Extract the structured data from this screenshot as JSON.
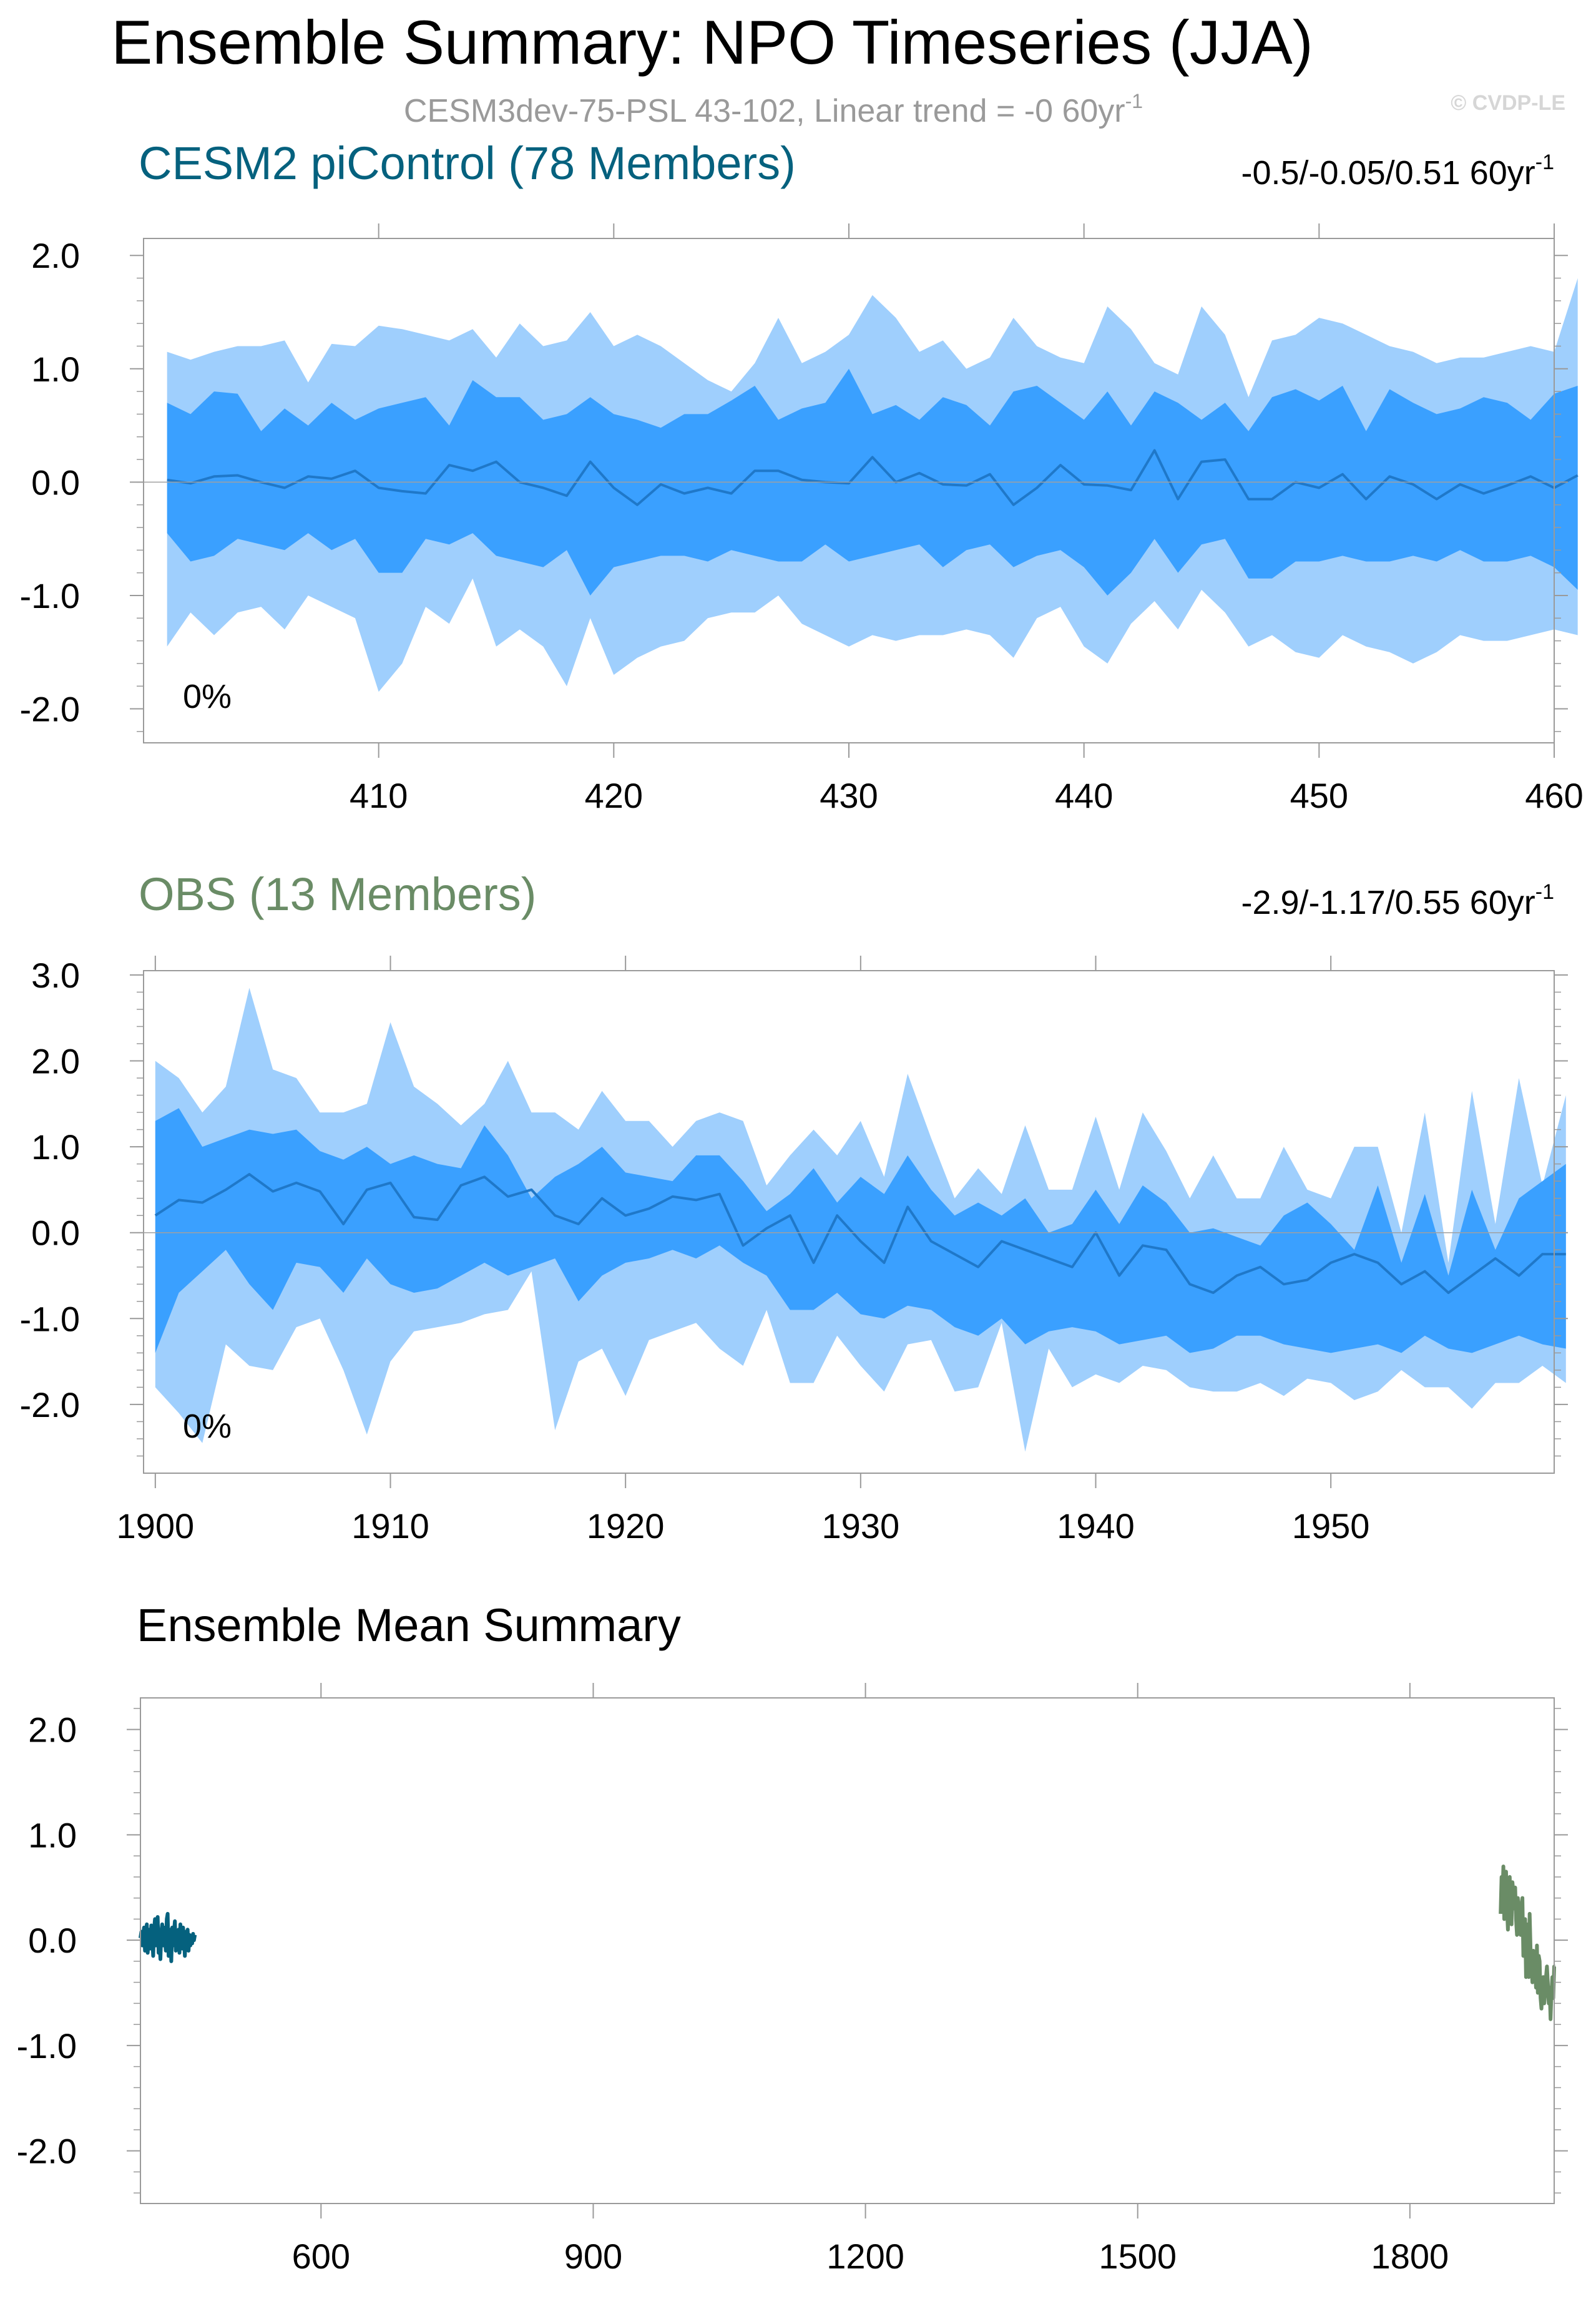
{
  "title": "Ensemble Summary: NPO Timeseries (JJA)",
  "subtitle": {
    "text": "CESM3dev-75-PSL 43-102, Linear trend = -0 60yr",
    "sup": "-1"
  },
  "watermark": "© CVDP-LE",
  "colors": {
    "outer_band": "#9fcffd",
    "inner_band": "#3aa0ff",
    "mean_line": "#1f78c9",
    "cesm_title": "#05617e",
    "obs_title": "#6a8c66",
    "subtitle": "#9a9a9a",
    "axis": "#9a9a9a"
  },
  "panels": [
    {
      "id": "cesm",
      "title": "CESM2 piControl (78 Members)",
      "stats": {
        "text": "-0.5/-0.05/0.51 60yr",
        "sup": "-1"
      },
      "percent_label": "0%",
      "y_tick_labels": [
        "2.0",
        "1.0",
        "0.0",
        "-1.0",
        "-2.0"
      ],
      "x_tick_labels": [
        "410",
        "420",
        "430",
        "440",
        "450",
        "460"
      ]
    },
    {
      "id": "obs",
      "title": "OBS (13 Members)",
      "stats": {
        "text": "-2.9/-1.17/0.55 60yr",
        "sup": "-1"
      },
      "percent_label": "0%",
      "y_tick_labels": [
        "3.0",
        "2.0",
        "1.0",
        "0.0",
        "-1.0",
        "-2.0"
      ],
      "x_tick_labels": [
        "1900",
        "1910",
        "1920",
        "1930",
        "1940",
        "1950"
      ]
    },
    {
      "id": "summary",
      "title": "Ensemble Mean Summary",
      "y_tick_labels": [
        "2.0",
        "1.0",
        "0.0",
        "-1.0",
        "-2.0"
      ],
      "x_tick_labels": [
        "600",
        "900",
        "1200",
        "1500",
        "1800"
      ]
    }
  ],
  "chart_data": [
    {
      "type": "area",
      "title": "CESM2 piControl (78 Members)",
      "x_start": 401,
      "xlim": [
        400,
        460
      ],
      "ylim": [
        -2.3,
        2.15
      ],
      "x_ticks": [
        410,
        420,
        430,
        440,
        450,
        460
      ],
      "y_ticks": [
        2.0,
        1.0,
        0.0,
        -1.0,
        -2.0
      ],
      "mean": [
        0.02,
        -0.01,
        0.05,
        0.06,
        0.0,
        -0.05,
        0.05,
        0.03,
        0.1,
        -0.05,
        -0.08,
        -0.1,
        0.15,
        0.1,
        0.18,
        0.0,
        -0.05,
        -0.12,
        0.18,
        -0.05,
        -0.2,
        -0.02,
        -0.1,
        -0.05,
        -0.1,
        0.1,
        0.1,
        0.02,
        0.0,
        -0.01,
        0.22,
        0.0,
        0.08,
        -0.02,
        -0.03,
        0.07,
        -0.2,
        -0.05,
        0.15,
        -0.02,
        -0.03,
        -0.07,
        0.28,
        -0.15,
        0.18,
        0.2,
        -0.15,
        -0.15,
        0.0,
        -0.05,
        0.07,
        -0.15,
        0.05,
        -0.02,
        -0.15,
        -0.02,
        -0.1,
        -0.03,
        0.05,
        -0.05,
        0.06
      ],
      "upper_outer": [
        1.15,
        1.08,
        1.15,
        1.2,
        1.2,
        1.25,
        0.88,
        1.22,
        1.2,
        1.38,
        1.35,
        1.3,
        1.25,
        1.35,
        1.1,
        1.4,
        1.2,
        1.25,
        1.5,
        1.2,
        1.3,
        1.2,
        1.05,
        0.9,
        0.8,
        1.05,
        1.45,
        1.05,
        1.15,
        1.3,
        1.65,
        1.45,
        1.15,
        1.25,
        1.0,
        1.1,
        1.45,
        1.2,
        1.1,
        1.05,
        1.55,
        1.35,
        1.05,
        0.95,
        1.55,
        1.3,
        0.75,
        1.25,
        1.3,
        1.45,
        1.4,
        1.3,
        1.2,
        1.15,
        1.05,
        1.1,
        1.1,
        1.15,
        1.2,
        1.15,
        1.8
      ],
      "upper_inner": [
        0.7,
        0.6,
        0.8,
        0.78,
        0.45,
        0.65,
        0.5,
        0.7,
        0.55,
        0.65,
        0.7,
        0.75,
        0.5,
        0.9,
        0.75,
        0.75,
        0.55,
        0.6,
        0.75,
        0.6,
        0.55,
        0.48,
        0.6,
        0.6,
        0.72,
        0.85,
        0.55,
        0.65,
        0.7,
        1.0,
        0.6,
        0.68,
        0.55,
        0.75,
        0.68,
        0.5,
        0.8,
        0.85,
        0.7,
        0.55,
        0.8,
        0.5,
        0.8,
        0.7,
        0.55,
        0.7,
        0.45,
        0.75,
        0.82,
        0.72,
        0.85,
        0.45,
        0.82,
        0.7,
        0.6,
        0.65,
        0.75,
        0.7,
        0.55,
        0.78,
        0.85
      ],
      "lower_inner": [
        -0.45,
        -0.7,
        -0.65,
        -0.5,
        -0.55,
        -0.6,
        -0.45,
        -0.6,
        -0.5,
        -0.8,
        -0.8,
        -0.5,
        -0.55,
        -0.45,
        -0.65,
        -0.7,
        -0.75,
        -0.6,
        -1.0,
        -0.75,
        -0.7,
        -0.65,
        -0.65,
        -0.7,
        -0.6,
        -0.65,
        -0.7,
        -0.7,
        -0.55,
        -0.7,
        -0.65,
        -0.6,
        -0.55,
        -0.75,
        -0.6,
        -0.55,
        -0.75,
        -0.65,
        -0.6,
        -0.75,
        -1.0,
        -0.8,
        -0.5,
        -0.8,
        -0.55,
        -0.5,
        -0.85,
        -0.85,
        -0.7,
        -0.7,
        -0.65,
        -0.7,
        -0.7,
        -0.65,
        -0.7,
        -0.6,
        -0.7,
        -0.7,
        -0.65,
        -0.75,
        -0.95
      ],
      "lower_outer": [
        -1.45,
        -1.15,
        -1.35,
        -1.15,
        -1.1,
        -1.3,
        -1.0,
        -1.1,
        -1.2,
        -1.85,
        -1.6,
        -1.1,
        -1.25,
        -0.85,
        -1.45,
        -1.3,
        -1.45,
        -1.8,
        -1.2,
        -1.7,
        -1.55,
        -1.45,
        -1.4,
        -1.2,
        -1.15,
        -1.15,
        -1.0,
        -1.25,
        -1.35,
        -1.45,
        -1.35,
        -1.4,
        -1.35,
        -1.35,
        -1.3,
        -1.35,
        -1.55,
        -1.2,
        -1.1,
        -1.45,
        -1.6,
        -1.25,
        -1.05,
        -1.3,
        -0.95,
        -1.15,
        -1.45,
        -1.35,
        -1.5,
        -1.55,
        -1.35,
        -1.45,
        -1.5,
        -1.6,
        -1.5,
        -1.35,
        -1.4,
        -1.4,
        -1.35,
        -1.3,
        -1.35
      ]
    },
    {
      "type": "area",
      "title": "OBS (13 Members)",
      "x_start": 1900,
      "xlim": [
        1899.5,
        1959.5
      ],
      "ylim": [
        -2.8,
        3.05
      ],
      "x_ticks": [
        1900,
        1910,
        1920,
        1930,
        1940,
        1950
      ],
      "y_ticks": [
        3.0,
        2.0,
        1.0,
        0.0,
        -1.0,
        -2.0
      ],
      "mean": [
        0.2,
        0.38,
        0.35,
        0.5,
        0.68,
        0.48,
        0.58,
        0.48,
        0.1,
        0.5,
        0.58,
        0.18,
        0.15,
        0.55,
        0.65,
        0.42,
        0.5,
        0.2,
        0.1,
        0.4,
        0.2,
        0.28,
        0.42,
        0.38,
        0.45,
        -0.15,
        0.05,
        0.2,
        -0.35,
        0.2,
        -0.1,
        -0.35,
        0.3,
        -0.1,
        -0.25,
        -0.4,
        -0.1,
        -0.2,
        -0.3,
        -0.4,
        0.0,
        -0.5,
        -0.15,
        -0.2,
        -0.6,
        -0.7,
        -0.5,
        -0.4,
        -0.6,
        -0.55,
        -0.35,
        -0.25,
        -0.35,
        -0.6,
        -0.45,
        -0.7,
        -0.5,
        -0.3,
        -0.5,
        -0.25,
        -0.25
      ],
      "upper_outer": [
        2.0,
        1.8,
        1.4,
        1.7,
        2.85,
        1.9,
        1.8,
        1.4,
        1.4,
        1.5,
        2.45,
        1.7,
        1.5,
        1.25,
        1.5,
        2.0,
        1.4,
        1.4,
        1.2,
        1.65,
        1.3,
        1.3,
        1.0,
        1.3,
        1.4,
        1.3,
        0.55,
        0.9,
        1.2,
        0.9,
        1.3,
        0.65,
        1.85,
        1.1,
        0.4,
        0.75,
        0.45,
        1.25,
        0.5,
        0.5,
        1.35,
        0.5,
        1.4,
        0.95,
        0.4,
        0.9,
        0.4,
        0.4,
        1.0,
        0.5,
        0.4,
        1.0,
        1.0,
        0.0,
        1.4,
        -0.35,
        1.65,
        0.1,
        1.8,
        0.55,
        1.6
      ],
      "upper_inner": [
        1.3,
        1.45,
        1.0,
        1.1,
        1.2,
        1.15,
        1.2,
        0.95,
        0.85,
        1.0,
        0.8,
        0.9,
        0.8,
        0.75,
        1.25,
        0.9,
        0.4,
        0.65,
        0.8,
        1.0,
        0.7,
        0.65,
        0.6,
        0.9,
        0.9,
        0.6,
        0.25,
        0.45,
        0.75,
        0.35,
        0.65,
        0.45,
        0.9,
        0.5,
        0.2,
        0.35,
        0.2,
        0.4,
        0.0,
        0.1,
        0.5,
        0.1,
        0.55,
        0.35,
        0.0,
        0.05,
        -0.05,
        -0.15,
        0.2,
        0.35,
        0.1,
        -0.2,
        0.55,
        -0.35,
        0.45,
        -0.5,
        0.5,
        -0.2,
        0.4,
        0.6,
        0.8
      ],
      "lower_inner": [
        -1.4,
        -0.7,
        -0.45,
        -0.2,
        -0.6,
        -0.9,
        -0.35,
        -0.4,
        -0.7,
        -0.3,
        -0.6,
        -0.7,
        -0.65,
        -0.5,
        -0.35,
        -0.5,
        -0.4,
        -0.3,
        -0.8,
        -0.5,
        -0.35,
        -0.3,
        -0.2,
        -0.3,
        -0.15,
        -0.35,
        -0.5,
        -0.9,
        -0.9,
        -0.7,
        -0.95,
        -1.0,
        -0.85,
        -0.9,
        -1.1,
        -1.2,
        -1.0,
        -1.3,
        -1.15,
        -1.1,
        -1.15,
        -1.3,
        -1.25,
        -1.2,
        -1.4,
        -1.35,
        -1.2,
        -1.2,
        -1.3,
        -1.35,
        -1.4,
        -1.35,
        -1.3,
        -1.4,
        -1.2,
        -1.35,
        -1.4,
        -1.3,
        -1.2,
        -1.3,
        -1.35
      ],
      "lower_outer": [
        -1.8,
        -2.1,
        -2.45,
        -1.3,
        -1.55,
        -1.6,
        -1.1,
        -1.0,
        -1.6,
        -2.35,
        -1.5,
        -1.15,
        -1.1,
        -1.05,
        -0.95,
        -0.9,
        -0.45,
        -2.3,
        -1.5,
        -1.35,
        -1.9,
        -1.25,
        -1.15,
        -1.05,
        -1.35,
        -1.55,
        -0.9,
        -1.75,
        -1.75,
        -1.2,
        -1.55,
        -1.85,
        -1.3,
        -1.25,
        -1.85,
        -1.8,
        -1.05,
        -2.55,
        -1.35,
        -1.8,
        -1.65,
        -1.75,
        -1.55,
        -1.6,
        -1.8,
        -1.85,
        -1.85,
        -1.75,
        -1.9,
        -1.7,
        -1.75,
        -1.95,
        -1.85,
        -1.6,
        -1.8,
        -1.8,
        -2.05,
        -1.75,
        -1.75,
        -1.55,
        -1.75
      ]
    },
    {
      "type": "line",
      "title": "Ensemble Mean Summary",
      "xlim": [
        401,
        1959
      ],
      "ylim": [
        -2.5,
        2.3
      ],
      "x_ticks": [
        600,
        900,
        1200,
        1500,
        1800
      ],
      "y_ticks": [
        2.0,
        1.0,
        0.0,
        -1.0,
        -2.0
      ],
      "series": [
        {
          "name": "CESM2 piControl",
          "color": "#05617e",
          "x_start": 401,
          "values": [
            0.02,
            0.08,
            -0.05,
            0.05,
            0.12,
            -0.1,
            0.06,
            0.15,
            -0.12,
            0.0,
            0.1,
            -0.08,
            0.14,
            0.03,
            -0.15,
            0.1,
            0.2,
            -0.05,
            0.05,
            0.22,
            -0.12,
            0.0,
            -0.18,
            0.08,
            0.15,
            -0.05,
            0.12,
            0.02,
            -0.1,
            0.2,
            0.25,
            -0.15,
            0.1,
            0.02,
            -0.2,
            0.12,
            -0.05,
            0.08,
            0.18,
            -0.1,
            0.05,
            -0.02,
            0.1,
            -0.12,
            0.15,
            0.04,
            -0.08,
            0.12,
            0.0,
            -0.15,
            0.08,
            -0.02,
            0.1,
            -0.1,
            0.05,
            -0.05,
            0.03,
            -0.03,
            0.06,
            0.0,
            0.05
          ]
        },
        {
          "name": "OBS",
          "color": "#6a8c66",
          "x_start": 1900,
          "values": [
            0.25,
            0.6,
            0.4,
            0.7,
            0.2,
            0.55,
            0.65,
            0.3,
            0.1,
            0.5,
            0.6,
            0.2,
            0.15,
            0.55,
            0.45,
            0.3,
            0.5,
            0.2,
            0.05,
            0.4,
            0.2,
            0.3,
            0.05,
            0.35,
            0.4,
            -0.15,
            0.05,
            0.2,
            -0.35,
            0.15,
            -0.1,
            -0.35,
            0.25,
            -0.1,
            -0.25,
            -0.4,
            -0.1,
            -0.2,
            -0.3,
            -0.45,
            -0.05,
            -0.5,
            -0.15,
            -0.2,
            -0.55,
            -0.65,
            -0.45,
            -0.35,
            -0.6,
            -0.5,
            -0.35,
            -0.25,
            -0.4,
            -0.6,
            -0.45,
            -0.75,
            -0.5,
            -0.35,
            -0.55,
            -0.25,
            -0.25
          ]
        }
      ]
    }
  ]
}
